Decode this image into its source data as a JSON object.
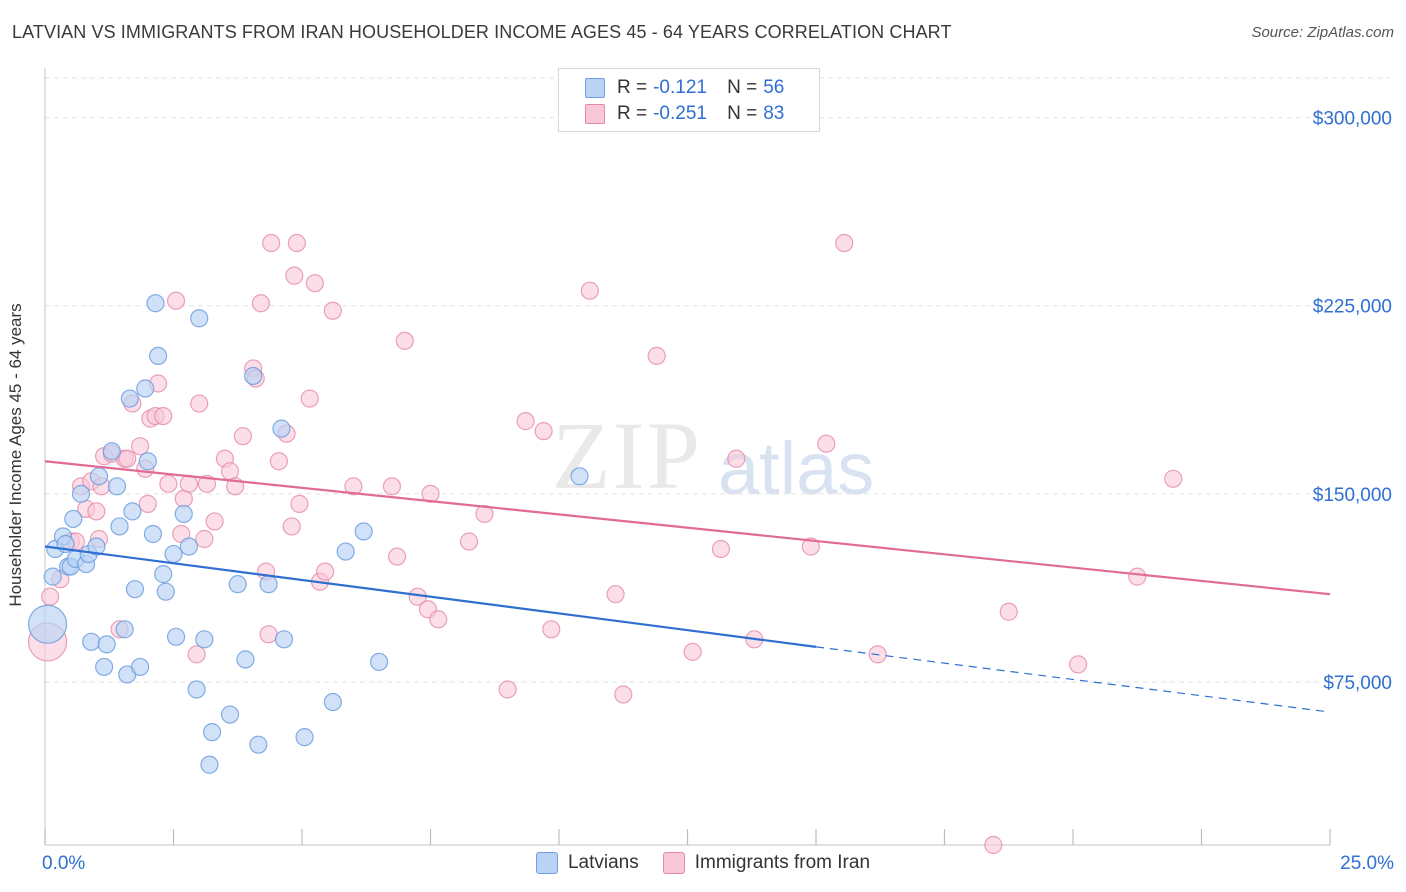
{
  "title": "LATVIAN VS IMMIGRANTS FROM IRAN HOUSEHOLDER INCOME AGES 45 - 64 YEARS CORRELATION CHART",
  "source": "Source: ZipAtlas.com",
  "watermark": {
    "zip": "ZIP",
    "atlas": "atlas"
  },
  "colors": {
    "latvians_fill": "#b9d3f5",
    "latvians_stroke": "#6f9fe0",
    "latvians_line": "#2f6fd1",
    "iran_fill": "#f8c8d8",
    "iran_stroke": "#e68aa9",
    "iran_line": "#e06b93",
    "axis_label": "#2f6fd1",
    "grid": "#e2e2e2"
  },
  "legend_top": {
    "rows": [
      {
        "r_label": "R =",
        "r_value": "-0.121",
        "n_label": "N =",
        "n_value": "56"
      },
      {
        "r_label": "R =",
        "r_value": "-0.251",
        "n_label": "N =",
        "n_value": "83"
      }
    ]
  },
  "legend_bottom": [
    "Latvians",
    "Immigrants from Iran"
  ],
  "chart_data": {
    "type": "scatter",
    "title": "LATVIAN VS IMMIGRANTS FROM IRAN HOUSEHOLDER INCOME AGES 45 - 64 YEARS CORRELATION CHART",
    "xlabel": "",
    "ylabel": "Householder Income Ages 45 - 64 years",
    "xlim": [
      0,
      25
    ],
    "ylim": [
      10000,
      315000
    ],
    "x_tick_labels": [
      "0.0%",
      "25.0%"
    ],
    "y_ticks": [
      75000,
      150000,
      225000,
      300000
    ],
    "y_tick_labels": [
      "$75,000",
      "$150,000",
      "$225,000",
      "$300,000"
    ],
    "grid": true,
    "legend_placement": "top-center",
    "series": [
      {
        "name": "Latvians",
        "r": -0.121,
        "n": 56,
        "trend": {
          "x0": 0,
          "y0": 129000,
          "x1": 15,
          "y1": 89000,
          "dash_to_x": 25,
          "dash_to_y": 63000
        },
        "points": [
          [
            0.05,
            98000,
            "L"
          ],
          [
            0.15,
            117000,
            "M"
          ],
          [
            0.2,
            128000,
            "M"
          ],
          [
            0.35,
            133000,
            "M"
          ],
          [
            0.4,
            130000,
            "M"
          ],
          [
            0.45,
            121000,
            "M"
          ],
          [
            0.5,
            121000,
            "M"
          ],
          [
            0.55,
            140000,
            "M"
          ],
          [
            0.6,
            124000,
            "M"
          ],
          [
            0.7,
            150000,
            "M"
          ],
          [
            0.8,
            122000,
            "M"
          ],
          [
            0.85,
            126000,
            "M"
          ],
          [
            0.9,
            91000,
            "M"
          ],
          [
            1.0,
            129000,
            "M"
          ],
          [
            1.05,
            157000,
            "M"
          ],
          [
            1.15,
            81000,
            "M"
          ],
          [
            1.2,
            90000,
            "M"
          ],
          [
            1.3,
            167000,
            "M"
          ],
          [
            1.4,
            153000,
            "M"
          ],
          [
            1.45,
            137000,
            "M"
          ],
          [
            1.55,
            96000,
            "M"
          ],
          [
            1.6,
            78000,
            "M"
          ],
          [
            1.65,
            188000,
            "M"
          ],
          [
            1.7,
            143000,
            "M"
          ],
          [
            1.75,
            112000,
            "M"
          ],
          [
            1.85,
            81000,
            "M"
          ],
          [
            1.95,
            192000,
            "M"
          ],
          [
            2.0,
            163000,
            "M"
          ],
          [
            2.1,
            134000,
            "M"
          ],
          [
            2.15,
            226000,
            "M"
          ],
          [
            2.2,
            205000,
            "M"
          ],
          [
            2.3,
            118000,
            "M"
          ],
          [
            2.35,
            111000,
            "M"
          ],
          [
            2.5,
            126000,
            "M"
          ],
          [
            2.55,
            93000,
            "M"
          ],
          [
            2.7,
            142000,
            "M"
          ],
          [
            2.8,
            129000,
            "M"
          ],
          [
            2.95,
            72000,
            "M"
          ],
          [
            3.0,
            220000,
            "M"
          ],
          [
            3.1,
            92000,
            "M"
          ],
          [
            3.2,
            42000,
            "M"
          ],
          [
            3.25,
            55000,
            "M"
          ],
          [
            3.6,
            62000,
            "M"
          ],
          [
            3.75,
            114000,
            "M"
          ],
          [
            3.9,
            84000,
            "M"
          ],
          [
            4.05,
            197000,
            "M"
          ],
          [
            4.15,
            50000,
            "M"
          ],
          [
            4.35,
            114000,
            "M"
          ],
          [
            4.6,
            176000,
            "M"
          ],
          [
            4.65,
            92000,
            "M"
          ],
          [
            5.05,
            53000,
            "M"
          ],
          [
            5.6,
            67000,
            "M"
          ],
          [
            5.85,
            127000,
            "M"
          ],
          [
            6.2,
            135000,
            "M"
          ],
          [
            6.5,
            83000,
            "M"
          ],
          [
            10.4,
            157000,
            "M"
          ]
        ]
      },
      {
        "name": "Immigrants from Iran",
        "r": -0.251,
        "n": 83,
        "trend": {
          "x0": 0,
          "y0": 163000,
          "x1": 25,
          "y1": 110000
        },
        "points": [
          [
            0.05,
            91000,
            "L"
          ],
          [
            0.1,
            109000,
            "M"
          ],
          [
            0.3,
            116000,
            "M"
          ],
          [
            0.5,
            131000,
            "M"
          ],
          [
            0.6,
            131000,
            "M"
          ],
          [
            0.7,
            153000,
            "M"
          ],
          [
            0.8,
            144000,
            "M"
          ],
          [
            0.9,
            155000,
            "M"
          ],
          [
            1.0,
            143000,
            "M"
          ],
          [
            1.05,
            132000,
            "M"
          ],
          [
            1.1,
            153000,
            "M"
          ],
          [
            1.15,
            165000,
            "M"
          ],
          [
            1.3,
            166000,
            "M"
          ],
          [
            1.45,
            96000,
            "M"
          ],
          [
            1.55,
            164000,
            "M"
          ],
          [
            1.6,
            164000,
            "M"
          ],
          [
            1.7,
            186000,
            "M"
          ],
          [
            1.85,
            169000,
            "M"
          ],
          [
            1.95,
            160000,
            "M"
          ],
          [
            2.0,
            146000,
            "M"
          ],
          [
            2.05,
            180000,
            "M"
          ],
          [
            2.15,
            181000,
            "M"
          ],
          [
            2.2,
            194000,
            "M"
          ],
          [
            2.3,
            181000,
            "M"
          ],
          [
            2.4,
            154000,
            "M"
          ],
          [
            2.55,
            227000,
            "M"
          ],
          [
            2.65,
            134000,
            "M"
          ],
          [
            2.7,
            148000,
            "M"
          ],
          [
            2.8,
            154000,
            "M"
          ],
          [
            2.95,
            86000,
            "M"
          ],
          [
            3.0,
            186000,
            "M"
          ],
          [
            3.1,
            132000,
            "M"
          ],
          [
            3.15,
            154000,
            "M"
          ],
          [
            3.3,
            139000,
            "M"
          ],
          [
            3.5,
            164000,
            "M"
          ],
          [
            3.6,
            159000,
            "M"
          ],
          [
            3.7,
            153000,
            "M"
          ],
          [
            3.85,
            173000,
            "M"
          ],
          [
            4.05,
            200000,
            "M"
          ],
          [
            4.1,
            196000,
            "M"
          ],
          [
            4.2,
            226000,
            "M"
          ],
          [
            4.3,
            119000,
            "M"
          ],
          [
            4.35,
            94000,
            "M"
          ],
          [
            4.4,
            250000,
            "M"
          ],
          [
            4.55,
            163000,
            "M"
          ],
          [
            4.7,
            174000,
            "M"
          ],
          [
            4.8,
            137000,
            "M"
          ],
          [
            4.85,
            237000,
            "M"
          ],
          [
            4.9,
            250000,
            "M"
          ],
          [
            4.95,
            146000,
            "M"
          ],
          [
            5.15,
            188000,
            "M"
          ],
          [
            5.25,
            234000,
            "M"
          ],
          [
            5.35,
            115000,
            "M"
          ],
          [
            5.45,
            119000,
            "M"
          ],
          [
            5.6,
            223000,
            "M"
          ],
          [
            6.0,
            153000,
            "M"
          ],
          [
            6.75,
            153000,
            "M"
          ],
          [
            6.85,
            125000,
            "M"
          ],
          [
            7.0,
            211000,
            "M"
          ],
          [
            7.25,
            109000,
            "M"
          ],
          [
            7.45,
            104000,
            "M"
          ],
          [
            7.5,
            150000,
            "M"
          ],
          [
            7.65,
            100000,
            "M"
          ],
          [
            8.25,
            131000,
            "M"
          ],
          [
            8.55,
            142000,
            "M"
          ],
          [
            9.0,
            72000,
            "M"
          ],
          [
            9.35,
            179000,
            "M"
          ],
          [
            9.7,
            175000,
            "M"
          ],
          [
            9.85,
            96000,
            "M"
          ],
          [
            10.6,
            231000,
            "M"
          ],
          [
            11.1,
            110000,
            "M"
          ],
          [
            11.25,
            70000,
            "M"
          ],
          [
            11.9,
            205000,
            "M"
          ],
          [
            12.6,
            87000,
            "M"
          ],
          [
            13.15,
            128000,
            "M"
          ],
          [
            13.45,
            164000,
            "M"
          ],
          [
            13.8,
            92000,
            "M"
          ],
          [
            14.9,
            129000,
            "M"
          ],
          [
            15.2,
            170000,
            "M"
          ],
          [
            15.55,
            250000,
            "M"
          ],
          [
            16.2,
            86000,
            "M"
          ],
          [
            18.45,
            10000,
            "M"
          ],
          [
            18.75,
            103000,
            "M"
          ],
          [
            20.1,
            82000,
            "M"
          ],
          [
            21.25,
            117000,
            "M"
          ],
          [
            21.95,
            156000,
            "M"
          ]
        ]
      }
    ]
  }
}
